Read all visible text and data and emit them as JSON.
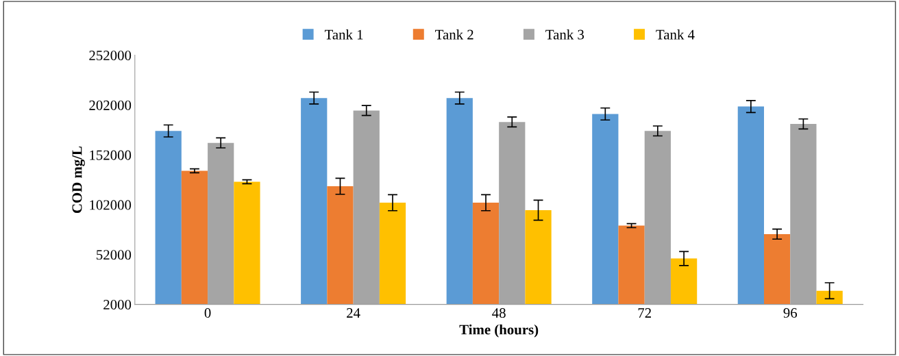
{
  "chart_data": {
    "type": "bar",
    "xlabel": "Time (hours)",
    "ylabel": "COD mg/L",
    "categories": [
      "0",
      "24",
      "48",
      "72",
      "96"
    ],
    "series": [
      {
        "name": "Tank 1",
        "color": "#5b9bd5",
        "values": [
          176000,
          209000,
          209000,
          193000,
          200500
        ],
        "errors": [
          6000,
          6000,
          6000,
          6000,
          6000
        ]
      },
      {
        "name": "Tank 2",
        "color": "#ed7d31",
        "values": [
          136000,
          120500,
          104000,
          81000,
          72500
        ],
        "errors": [
          2000,
          8000,
          8000,
          2000,
          5000
        ]
      },
      {
        "name": "Tank 3",
        "color": "#a5a5a5",
        "values": [
          164000,
          196500,
          185000,
          176000,
          183000
        ],
        "errors": [
          5000,
          5000,
          5000,
          5000,
          5000
        ]
      },
      {
        "name": "Tank 4",
        "color": "#ffc000",
        "values": [
          125000,
          104000,
          96500,
          48000,
          15700
        ],
        "errors": [
          2000,
          8000,
          10000,
          7000,
          8000
        ]
      }
    ],
    "ylim": [
      2000,
      252000
    ],
    "yticks": [
      2000,
      52000,
      102000,
      152000,
      202000,
      252000
    ],
    "grid": false,
    "legend": "top"
  }
}
